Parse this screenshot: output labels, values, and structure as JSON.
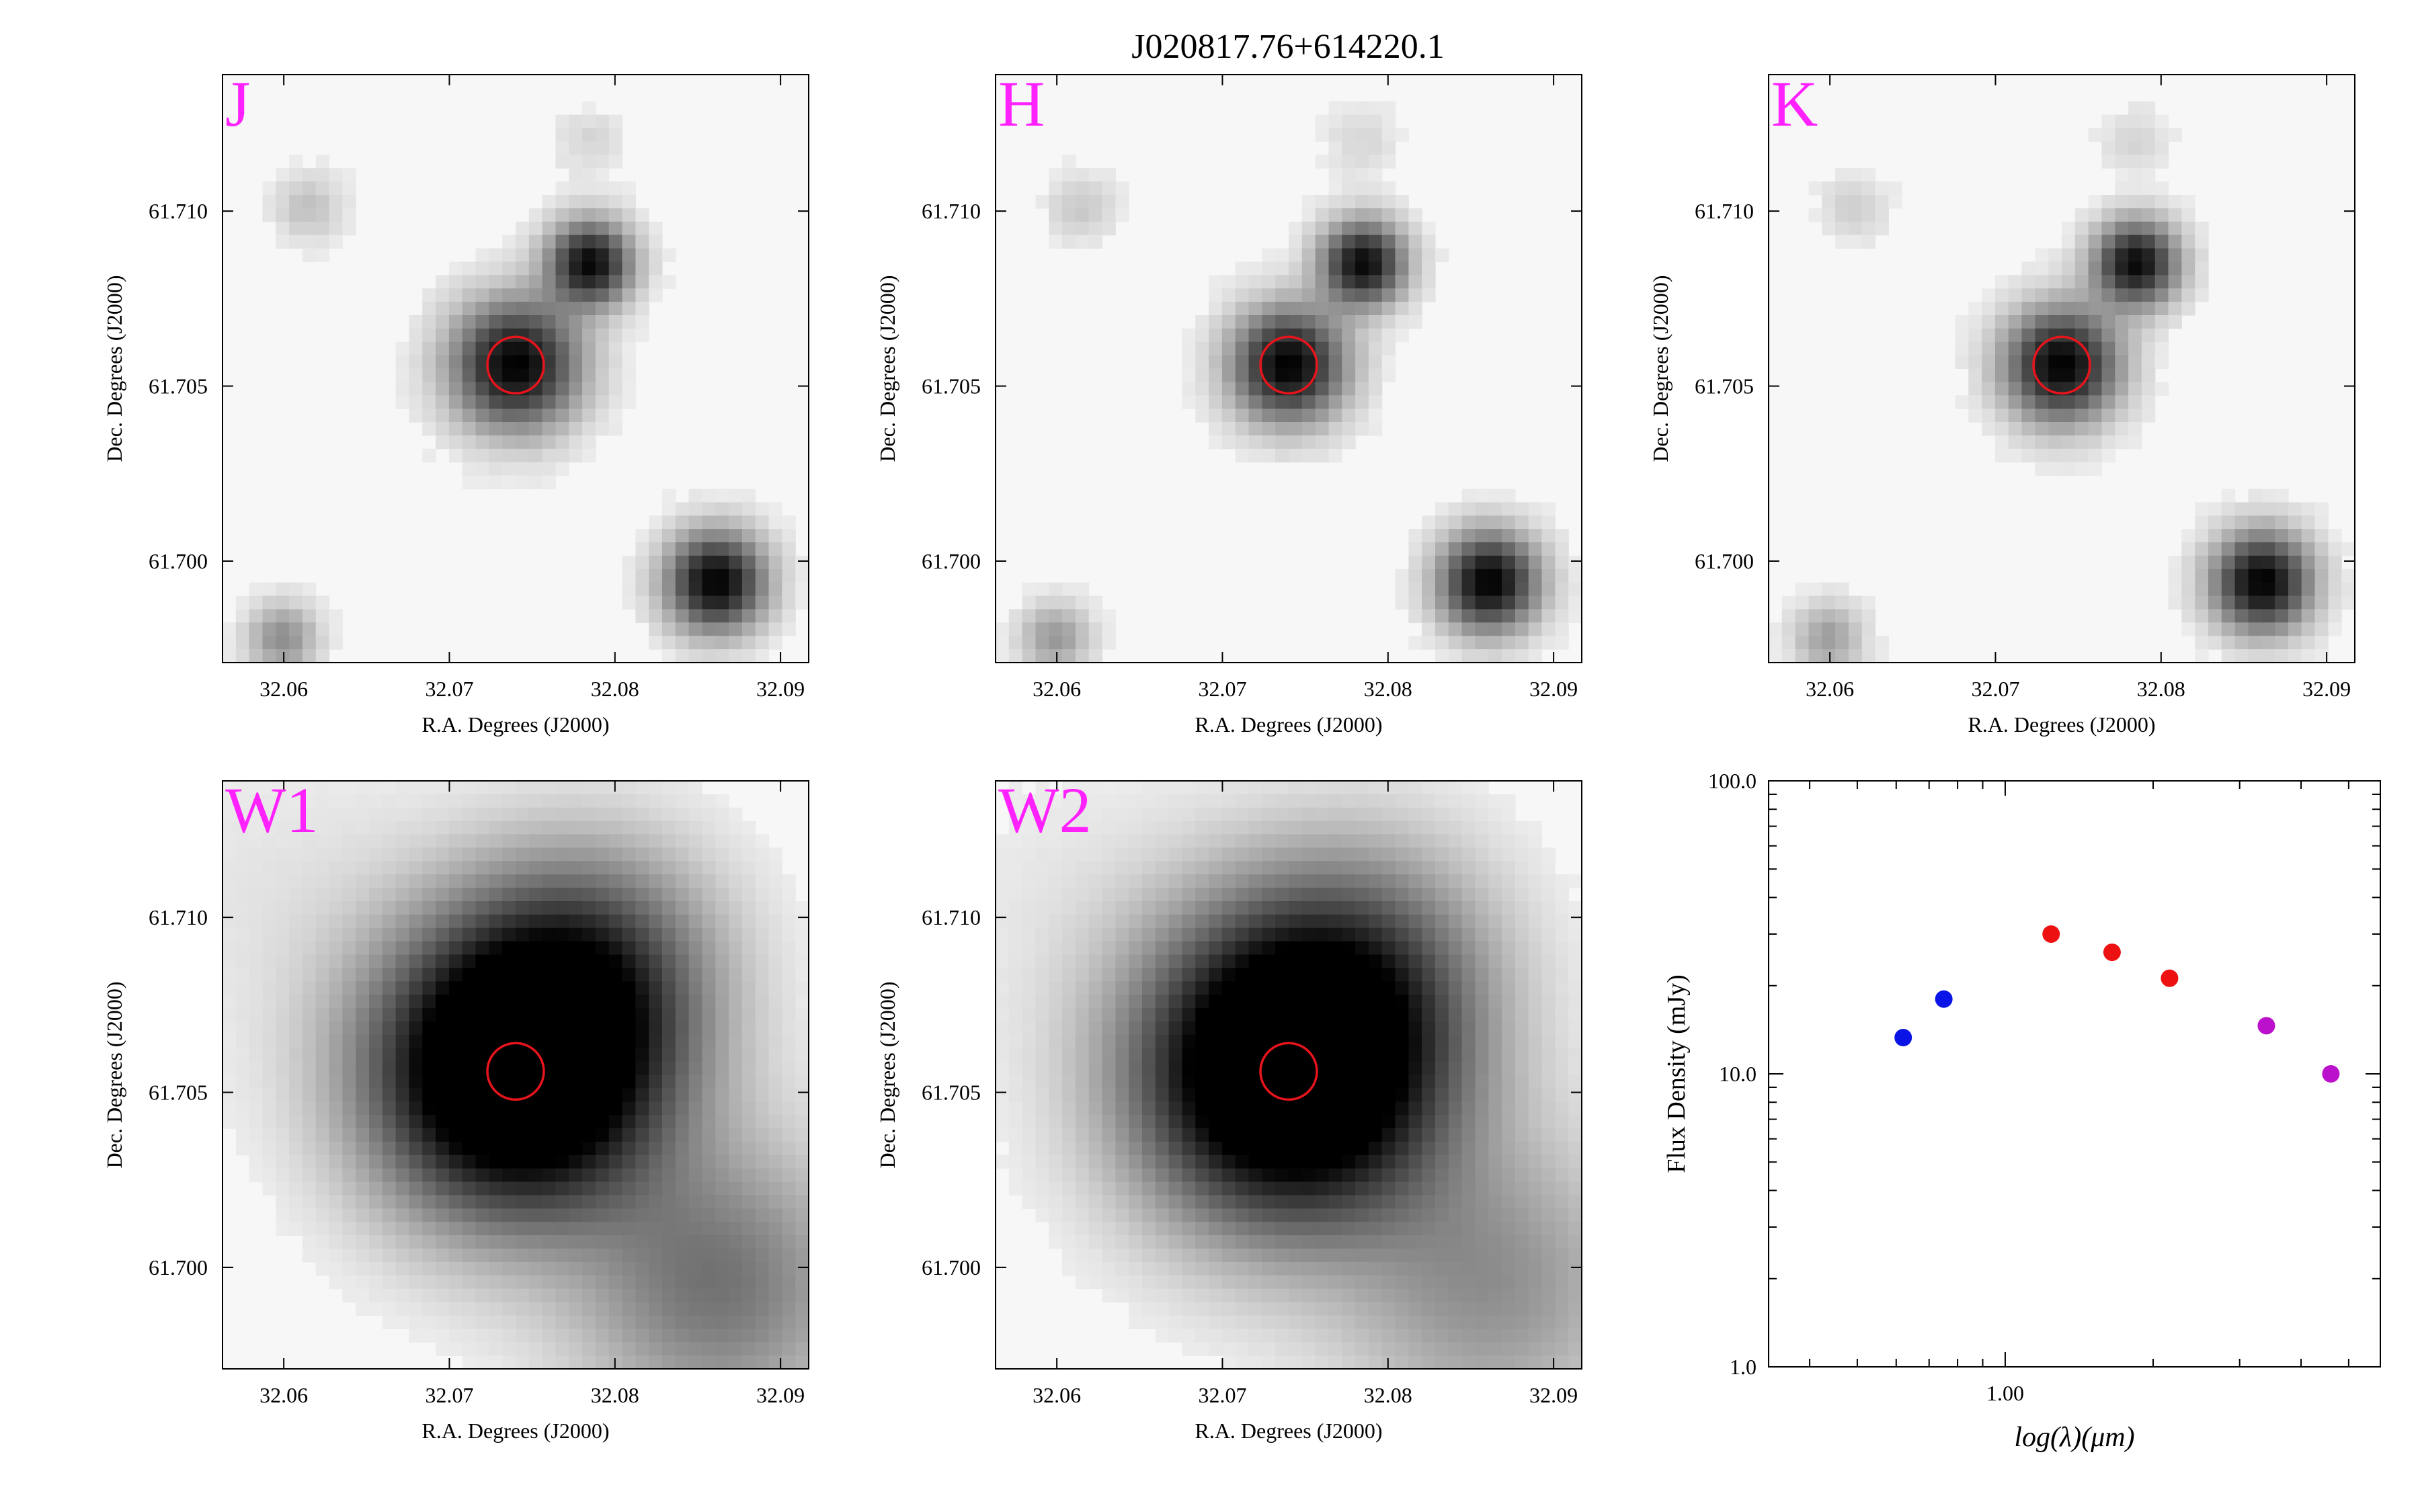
{
  "figure": {
    "title": "J020817.76+614220.1",
    "source_marker_color": "#e8141c",
    "band_label_color": "#ff22ff"
  },
  "chart_data": [
    {
      "type": "image",
      "band": "J",
      "xlabel": "R.A. Degrees (J2000)",
      "ylabel": "Dec. Degrees (J2000)",
      "xlim": [
        32.0563,
        32.0917
      ],
      "ylim": [
        61.6971,
        61.7139
      ],
      "xticks": [
        "32.06",
        "32.07",
        "32.08",
        "32.09"
      ],
      "yticks": [
        "61.700",
        "61.705",
        "61.710"
      ],
      "target": {
        "ra": 32.074,
        "dec": 61.7056
      },
      "sources": [
        {
          "ra": 32.074,
          "dec": 61.7056,
          "sigma": 0.0009,
          "peak": 1.0
        },
        {
          "ra": 32.0785,
          "dec": 61.7085,
          "sigma": 0.0006,
          "peak": 0.95
        },
        {
          "ra": 32.0861,
          "dec": 61.6994,
          "sigma": 0.0007,
          "peak": 1.0
        },
        {
          "ra": 32.0599,
          "dec": 61.6978,
          "sigma": 0.0005,
          "peak": 0.35
        },
        {
          "ra": 32.0615,
          "dec": 61.7101,
          "sigma": 0.0005,
          "peak": 0.15
        },
        {
          "ra": 32.0784,
          "dec": 61.712,
          "sigma": 0.0005,
          "peak": 0.08
        }
      ]
    },
    {
      "type": "image",
      "band": "H",
      "xlabel": "R.A. Degrees (J2000)",
      "ylabel": "Dec. Degrees (J2000)",
      "xlim": [
        32.0563,
        32.0917
      ],
      "ylim": [
        61.6971,
        61.7139
      ],
      "xticks": [
        "32.06",
        "32.07",
        "32.08",
        "32.09"
      ],
      "yticks": [
        "61.700",
        "61.705",
        "61.710"
      ],
      "target": {
        "ra": 32.074,
        "dec": 61.7056
      },
      "sources": [
        {
          "ra": 32.074,
          "dec": 61.7056,
          "sigma": 0.0008,
          "peak": 1.0
        },
        {
          "ra": 32.0785,
          "dec": 61.7085,
          "sigma": 0.0006,
          "peak": 0.95
        },
        {
          "ra": 32.0861,
          "dec": 61.6994,
          "sigma": 0.0007,
          "peak": 1.0
        },
        {
          "ra": 32.0599,
          "dec": 61.6978,
          "sigma": 0.0005,
          "peak": 0.3
        },
        {
          "ra": 32.0615,
          "dec": 61.7101,
          "sigma": 0.0005,
          "peak": 0.12
        },
        {
          "ra": 32.0784,
          "dec": 61.712,
          "sigma": 0.0005,
          "peak": 0.08
        }
      ]
    },
    {
      "type": "image",
      "band": "K",
      "xlabel": "R.A. Degrees (J2000)",
      "ylabel": "Dec. Degrees (J2000)",
      "xlim": [
        32.0563,
        32.0917
      ],
      "ylim": [
        61.6971,
        61.7139
      ],
      "xticks": [
        "32.06",
        "32.07",
        "32.08",
        "32.09"
      ],
      "yticks": [
        "61.700",
        "61.705",
        "61.710"
      ],
      "target": {
        "ra": 32.074,
        "dec": 61.7056
      },
      "sources": [
        {
          "ra": 32.074,
          "dec": 61.7056,
          "sigma": 0.0008,
          "peak": 1.0
        },
        {
          "ra": 32.0785,
          "dec": 61.7085,
          "sigma": 0.0006,
          "peak": 0.95
        },
        {
          "ra": 32.0861,
          "dec": 61.6994,
          "sigma": 0.0007,
          "peak": 1.0
        },
        {
          "ra": 32.0599,
          "dec": 61.6978,
          "sigma": 0.0005,
          "peak": 0.28
        },
        {
          "ra": 32.0615,
          "dec": 61.7101,
          "sigma": 0.0005,
          "peak": 0.1
        },
        {
          "ra": 32.0784,
          "dec": 61.712,
          "sigma": 0.0005,
          "peak": 0.08
        }
      ]
    },
    {
      "type": "image",
      "band": "W1",
      "xlabel": "R.A. Degrees (J2000)",
      "ylabel": "Dec. Degrees (J2000)",
      "xlim": [
        32.0563,
        32.0917
      ],
      "ylim": [
        61.6971,
        61.7139
      ],
      "xticks": [
        "32.06",
        "32.07",
        "32.08",
        "32.09"
      ],
      "yticks": [
        "61.700",
        "61.705",
        "61.710"
      ],
      "target": {
        "ra": 32.074,
        "dec": 61.7056
      },
      "sources": [
        {
          "ra": 32.074,
          "dec": 61.7056,
          "sigma": 0.002,
          "peak": 1.6
        },
        {
          "ra": 32.0785,
          "dec": 61.7084,
          "sigma": 0.0018,
          "peak": 0.55
        },
        {
          "ra": 32.0862,
          "dec": 61.6995,
          "sigma": 0.002,
          "peak": 0.45
        },
        {
          "ra": 32.0605,
          "dec": 61.7105,
          "sigma": 0.0025,
          "peak": 0.04
        }
      ]
    },
    {
      "type": "image",
      "band": "W2",
      "xlabel": "R.A. Degrees (J2000)",
      "ylabel": "Dec. Degrees (J2000)",
      "xlim": [
        32.0563,
        32.0917
      ],
      "ylim": [
        61.6971,
        61.7139
      ],
      "xticks": [
        "32.06",
        "32.07",
        "32.08",
        "32.09"
      ],
      "yticks": [
        "61.700",
        "61.705",
        "61.710"
      ],
      "target": {
        "ra": 32.074,
        "dec": 61.7056
      },
      "sources": [
        {
          "ra": 32.074,
          "dec": 61.7056,
          "sigma": 0.0021,
          "peak": 1.6
        },
        {
          "ra": 32.0785,
          "dec": 61.7084,
          "sigma": 0.0019,
          "peak": 0.4
        },
        {
          "ra": 32.0862,
          "dec": 61.6995,
          "sigma": 0.0021,
          "peak": 0.33
        },
        {
          "ra": 32.0605,
          "dec": 61.7105,
          "sigma": 0.0025,
          "peak": 0.03
        }
      ]
    },
    {
      "type": "scatter",
      "xlabel": "log(λ)(μm)",
      "ylabel": "Flux Density (mJy)",
      "xscale": "log",
      "yscale": "log",
      "xlim": [
        0.33,
        5.8
      ],
      "ylim": [
        1.0,
        100.0
      ],
      "xticks": [
        "1.00"
      ],
      "yticks": [
        "1.0",
        "10.0",
        "100.0"
      ],
      "series": [
        {
          "color": "#0a14e6",
          "x": [
            0.62,
            0.75
          ],
          "y": [
            13.3,
            18.0
          ]
        },
        {
          "color": "#ee1111",
          "x": [
            1.24,
            1.65,
            2.16
          ],
          "y": [
            30.0,
            26.0,
            21.2
          ]
        },
        {
          "color": "#bb11cc",
          "x": [
            3.4,
            4.6
          ],
          "y": [
            14.6,
            10.0
          ]
        }
      ]
    }
  ]
}
